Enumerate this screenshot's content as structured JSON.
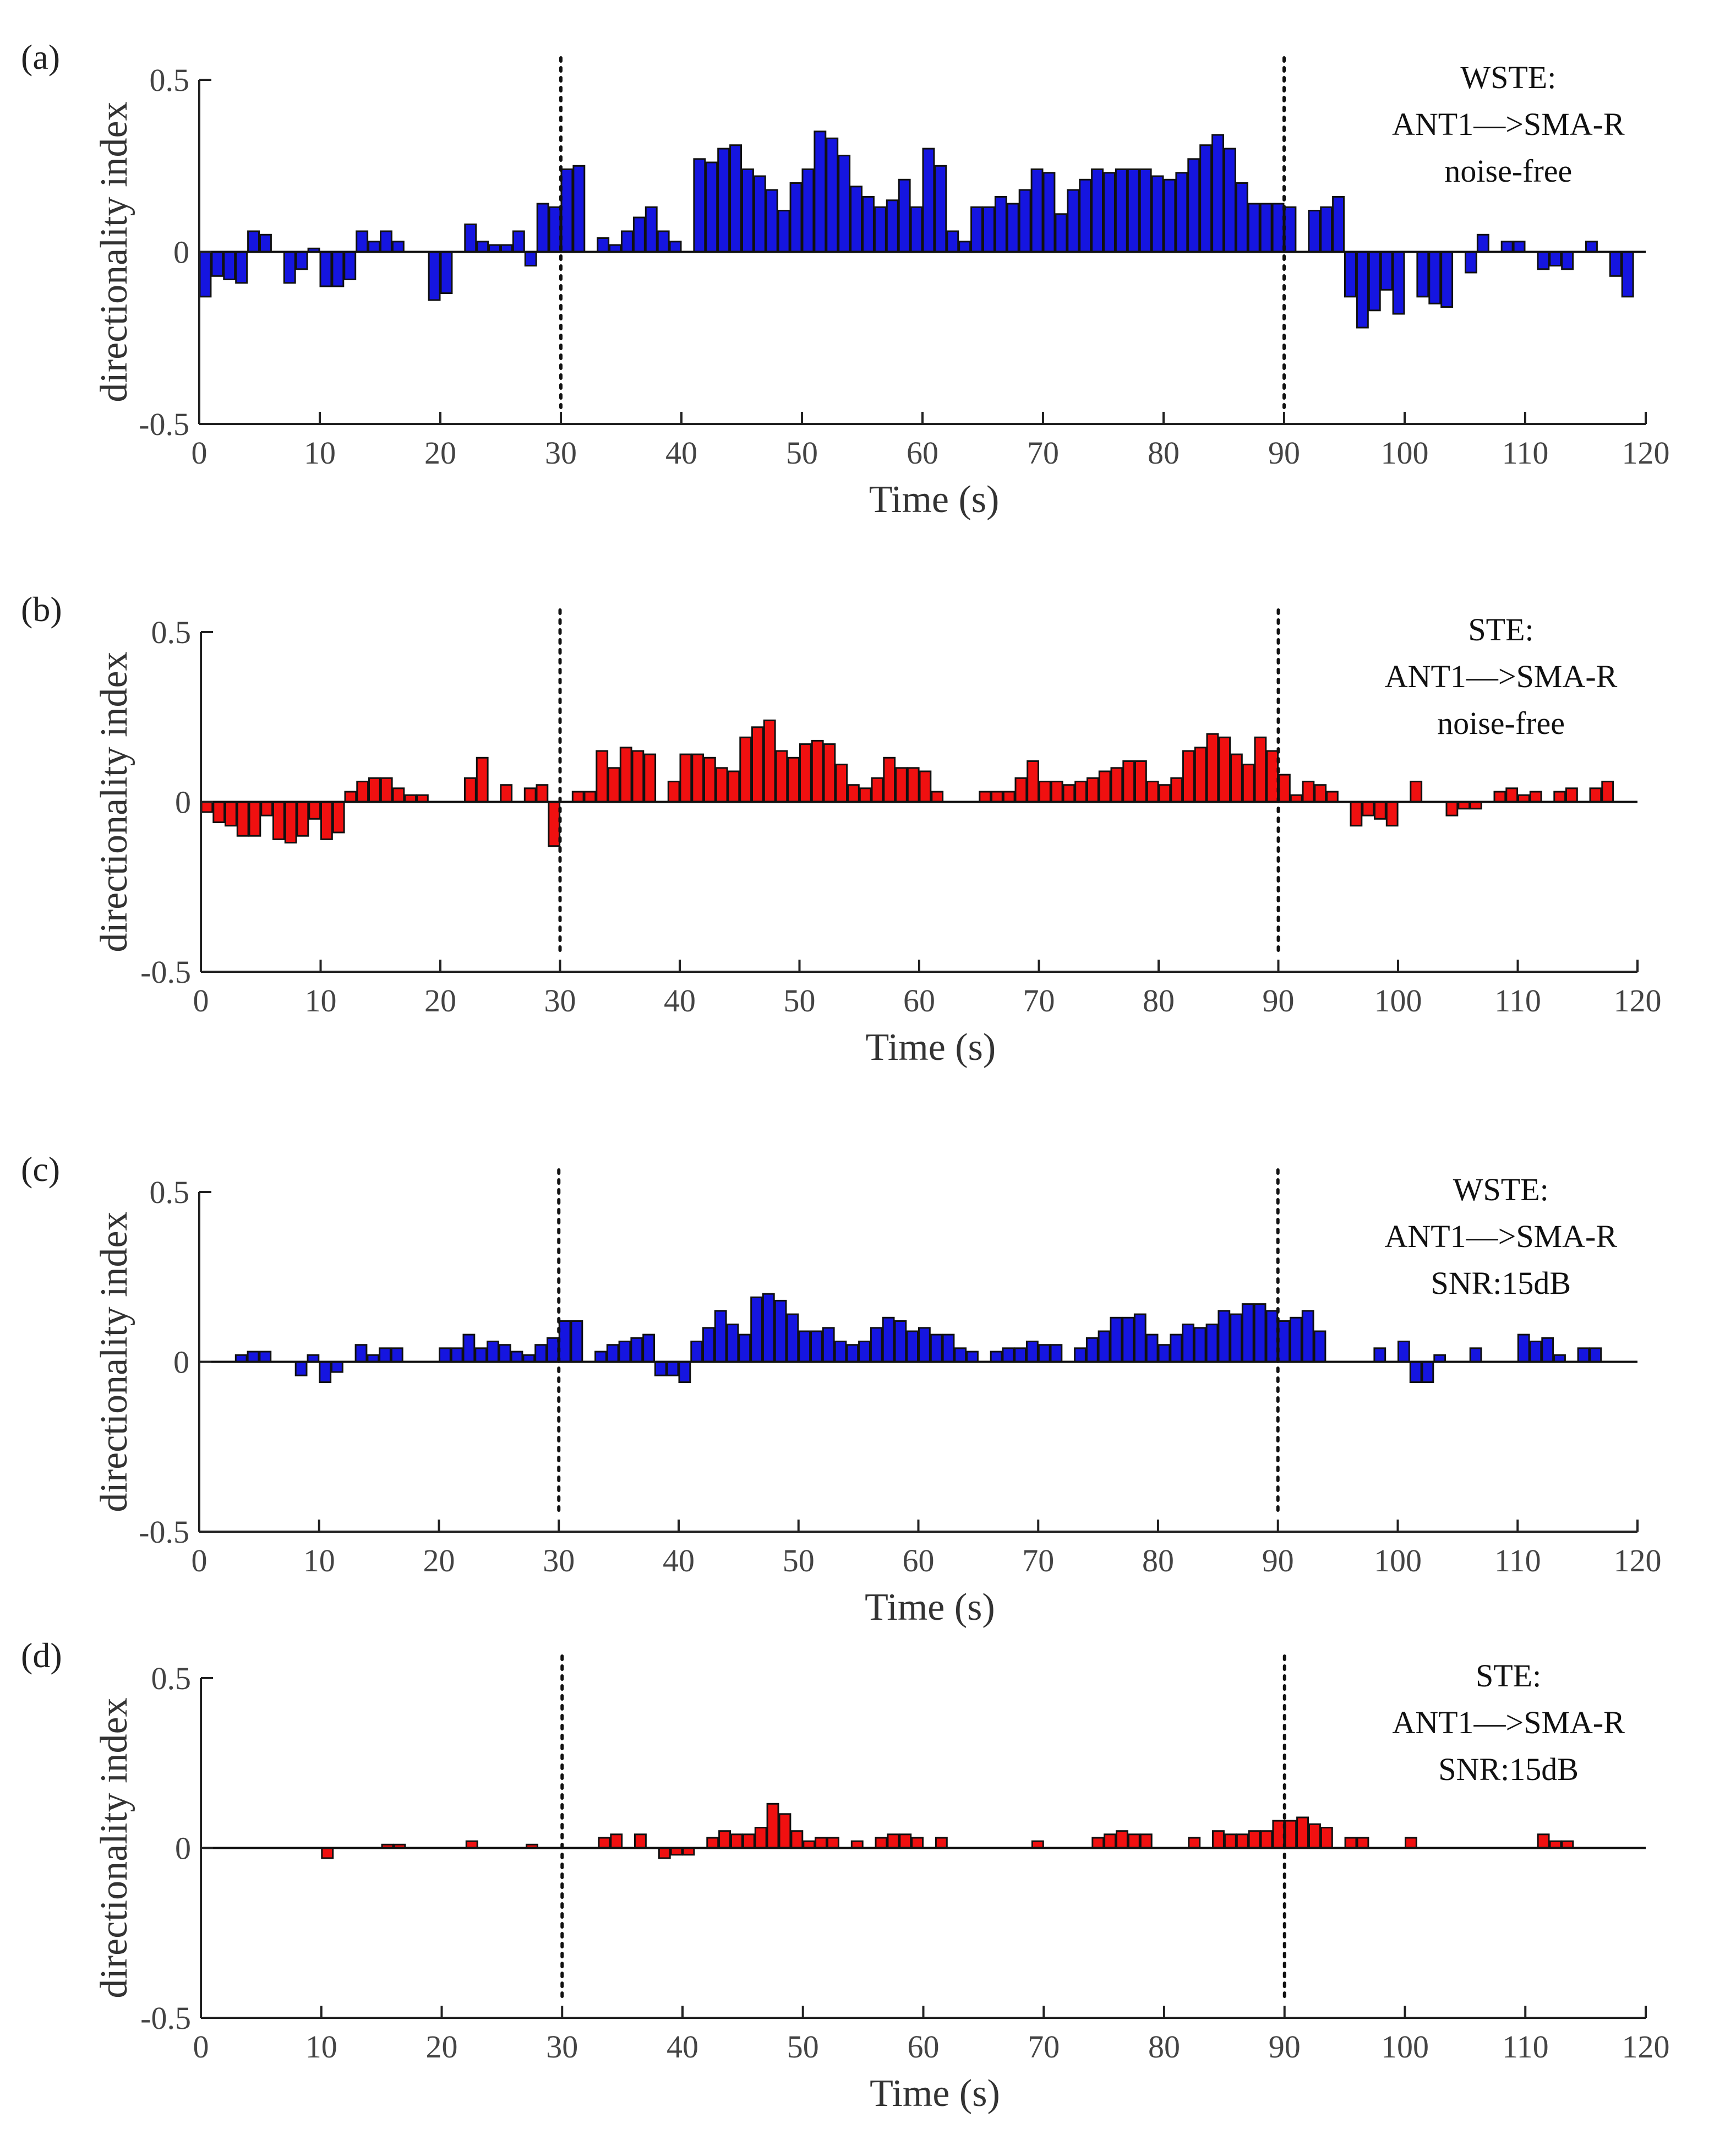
{
  "figure": {
    "panels": [
      {
        "panel_label": "(a)",
        "annotation": [
          "WSTE:",
          "ANT1—>SMA-R",
          "noise-free"
        ],
        "bar_color": "#1515e0"
      },
      {
        "panel_label": "(b)",
        "annotation": [
          "STE:",
          "ANT1—>SMA-R",
          "noise-free"
        ],
        "bar_color": "#f01010"
      },
      {
        "panel_label": "(c)",
        "annotation": [
          "WSTE:",
          "ANT1—>SMA-R",
          "SNR:15dB"
        ],
        "bar_color": "#1515e0"
      },
      {
        "panel_label": "(d)",
        "annotation": [
          "STE:",
          "ANT1—>SMA-R",
          "SNR:15dB"
        ],
        "bar_color": "#f01010"
      }
    ]
  },
  "chart_data": [
    {
      "type": "bar",
      "title": "WSTE: ANT1—>SMA-R noise-free",
      "xlabel": "Time (s)",
      "ylabel": "directionality index",
      "xlim": [
        0,
        120
      ],
      "ylim": [
        -0.5,
        0.5
      ],
      "xticks": [
        0,
        10,
        20,
        30,
        40,
        50,
        60,
        70,
        80,
        90,
        100,
        110,
        120
      ],
      "yticks": [
        -0.5,
        0,
        0.5
      ],
      "ytick_labels": [
        "-0.5",
        "0",
        "0.5"
      ],
      "vlines": [
        30,
        90
      ],
      "x": [
        0,
        1,
        2,
        3,
        4,
        5,
        6,
        7,
        8,
        9,
        10,
        11,
        12,
        13,
        14,
        15,
        16,
        17,
        18,
        19,
        20,
        21,
        22,
        23,
        24,
        25,
        26,
        27,
        28,
        29,
        30,
        31,
        32,
        33,
        34,
        35,
        36,
        37,
        38,
        39,
        40,
        41,
        42,
        43,
        44,
        45,
        46,
        47,
        48,
        49,
        50,
        51,
        52,
        53,
        54,
        55,
        56,
        57,
        58,
        59,
        60,
        61,
        62,
        63,
        64,
        65,
        66,
        67,
        68,
        69,
        70,
        71,
        72,
        73,
        74,
        75,
        76,
        77,
        78,
        79,
        80,
        81,
        82,
        83,
        84,
        85,
        86,
        87,
        88,
        89,
        90,
        91,
        92,
        93,
        94,
        95,
        96,
        97,
        98,
        99,
        100,
        101,
        102,
        103,
        104,
        105,
        106,
        107,
        108,
        109,
        110,
        111,
        112,
        113,
        114,
        115,
        116,
        117,
        118
      ],
      "values": [
        -0.13,
        -0.07,
        -0.08,
        -0.09,
        0.06,
        0.05,
        0,
        -0.09,
        -0.05,
        0.01,
        -0.1,
        -0.1,
        -0.08,
        0.06,
        0.03,
        0.06,
        0.03,
        0,
        0,
        -0.14,
        -0.12,
        0,
        0.08,
        0.03,
        0.02,
        0.02,
        0.06,
        -0.04,
        0.14,
        0.13,
        0.24,
        0.25,
        0,
        0.04,
        0.02,
        0.06,
        0.1,
        0.13,
        0.06,
        0.03,
        0,
        0.27,
        0.26,
        0.3,
        0.31,
        0.24,
        0.22,
        0.18,
        0.12,
        0.2,
        0.24,
        0.35,
        0.33,
        0.28,
        0.19,
        0.16,
        0.13,
        0.15,
        0.21,
        0.13,
        0.3,
        0.25,
        0.06,
        0.03,
        0.13,
        0.13,
        0.16,
        0.14,
        0.18,
        0.24,
        0.23,
        0.11,
        0.18,
        0.21,
        0.24,
        0.23,
        0.24,
        0.24,
        0.24,
        0.22,
        0.21,
        0.23,
        0.27,
        0.31,
        0.34,
        0.3,
        0.2,
        0.14,
        0.14,
        0.14,
        0.13,
        0,
        0.12,
        0.13,
        0.16,
        -0.13,
        -0.22,
        -0.17,
        -0.11,
        -0.18,
        0,
        -0.13,
        -0.15,
        -0.16,
        0,
        -0.06,
        0.05,
        0,
        0.03,
        0.03,
        0,
        -0.05,
        -0.04,
        -0.05,
        0,
        0.03,
        0,
        -0.07,
        -0.13
      ]
    },
    {
      "type": "bar",
      "title": "STE: ANT1—>SMA-R noise-free",
      "xlabel": "Time (s)",
      "ylabel": "directionality index",
      "xlim": [
        0,
        120
      ],
      "ylim": [
        -0.5,
        0.5
      ],
      "xticks": [
        0,
        10,
        20,
        30,
        40,
        50,
        60,
        70,
        80,
        90,
        100,
        110,
        120
      ],
      "yticks": [
        -0.5,
        0,
        0.5
      ],
      "ytick_labels": [
        "-0.5",
        "0",
        "0.5"
      ],
      "vlines": [
        30,
        90
      ],
      "x": [
        0,
        1,
        2,
        3,
        4,
        5,
        6,
        7,
        8,
        9,
        10,
        11,
        12,
        13,
        14,
        15,
        16,
        17,
        18,
        19,
        20,
        21,
        22,
        23,
        24,
        25,
        26,
        27,
        28,
        29,
        30,
        31,
        32,
        33,
        34,
        35,
        36,
        37,
        38,
        39,
        40,
        41,
        42,
        43,
        44,
        45,
        46,
        47,
        48,
        49,
        50,
        51,
        52,
        53,
        54,
        55,
        56,
        57,
        58,
        59,
        60,
        61,
        62,
        63,
        64,
        65,
        66,
        67,
        68,
        69,
        70,
        71,
        72,
        73,
        74,
        75,
        76,
        77,
        78,
        79,
        80,
        81,
        82,
        83,
        84,
        85,
        86,
        87,
        88,
        89,
        90,
        91,
        92,
        93,
        94,
        95,
        96,
        97,
        98,
        99,
        100,
        101,
        102,
        103,
        104,
        105,
        106,
        107,
        108,
        109,
        110,
        111,
        112,
        113,
        114,
        115,
        116,
        117
      ],
      "values": [
        -0.03,
        -0.06,
        -0.07,
        -0.1,
        -0.1,
        -0.04,
        -0.11,
        -0.12,
        -0.1,
        -0.05,
        -0.11,
        -0.09,
        0.03,
        0.06,
        0.07,
        0.07,
        0.04,
        0.02,
        0.02,
        0,
        0,
        0,
        0.07,
        0.13,
        0,
        0.05,
        0,
        0.04,
        0.05,
        -0.13,
        0,
        0.03,
        0.03,
        0.15,
        0.1,
        0.16,
        0.15,
        0.14,
        0,
        0.06,
        0.14,
        0.14,
        0.13,
        0.1,
        0.09,
        0.19,
        0.22,
        0.24,
        0.15,
        0.13,
        0.17,
        0.18,
        0.17,
        0.11,
        0.05,
        0.04,
        0.07,
        0.13,
        0.1,
        0.1,
        0.09,
        0.03,
        0,
        0,
        0,
        0.03,
        0.03,
        0.03,
        0.07,
        0.12,
        0.06,
        0.06,
        0.05,
        0.06,
        0.07,
        0.09,
        0.1,
        0.12,
        0.12,
        0.06,
        0.05,
        0.07,
        0.15,
        0.16,
        0.2,
        0.19,
        0.14,
        0.11,
        0.19,
        0.15,
        0.08,
        0.02,
        0.06,
        0.05,
        0.03,
        0,
        -0.07,
        -0.04,
        -0.05,
        -0.07,
        0,
        0.06,
        0,
        0,
        -0.04,
        -0.02,
        -0.02,
        0,
        0.03,
        0.04,
        0.02,
        0.03,
        0,
        0.03,
        0.04,
        0,
        0.04,
        0.06
      ]
    },
    {
      "type": "bar",
      "title": "WSTE: ANT1—>SMA-R SNR:15dB",
      "xlabel": "Time (s)",
      "ylabel": "directionality index",
      "xlim": [
        0,
        120
      ],
      "ylim": [
        -0.5,
        0.5
      ],
      "xticks": [
        0,
        10,
        20,
        30,
        40,
        50,
        60,
        70,
        80,
        90,
        100,
        110,
        120
      ],
      "yticks": [
        -0.5,
        0,
        0.5
      ],
      "ytick_labels": [
        "-0.5",
        "0",
        "0.5"
      ],
      "vlines": [
        30,
        90
      ],
      "x": [
        3,
        4,
        5,
        8,
        9,
        10,
        11,
        13,
        14,
        15,
        16,
        20,
        21,
        22,
        23,
        24,
        25,
        26,
        27,
        28,
        29,
        30,
        31,
        32,
        33,
        34,
        35,
        36,
        37,
        38,
        39,
        40,
        41,
        42,
        43,
        44,
        45,
        46,
        47,
        48,
        49,
        50,
        51,
        52,
        53,
        54,
        55,
        56,
        57,
        58,
        59,
        60,
        61,
        62,
        63,
        64,
        65,
        66,
        67,
        68,
        69,
        70,
        71,
        72,
        73,
        74,
        75,
        76,
        77,
        78,
        79,
        80,
        81,
        82,
        83,
        84,
        85,
        86,
        87,
        88,
        89,
        90,
        91,
        92,
        93,
        94,
        95,
        98,
        100,
        101,
        102,
        103,
        104,
        106,
        110,
        111,
        112,
        113,
        114,
        115,
        116
      ],
      "values": [
        0.02,
        0.03,
        0.03,
        -0.04,
        0.02,
        -0.06,
        -0.03,
        0.05,
        0.02,
        0.04,
        0.04,
        0.04,
        0.04,
        0.08,
        0.04,
        0.06,
        0.05,
        0.03,
        0.02,
        0.05,
        0.07,
        0.12,
        0.12,
        0,
        0.03,
        0.05,
        0.06,
        0.07,
        0.08,
        -0.04,
        -0.04,
        -0.06,
        0.06,
        0.1,
        0.15,
        0.11,
        0.08,
        0.19,
        0.2,
        0.18,
        0.14,
        0.09,
        0.09,
        0.1,
        0.06,
        0.05,
        0.06,
        0.1,
        0.13,
        0.12,
        0.09,
        0.1,
        0.08,
        0.08,
        0.04,
        0.03,
        0,
        0.03,
        0.04,
        0.04,
        0.06,
        0.05,
        0.05,
        0,
        0.04,
        0.07,
        0.09,
        0.13,
        0.13,
        0.14,
        0.08,
        0.05,
        0.08,
        0.11,
        0.1,
        0.11,
        0.15,
        0.14,
        0.17,
        0.17,
        0.15,
        0.12,
        0.13,
        0.15,
        0.09,
        0,
        0,
        0.04,
        0.06,
        -0.06,
        -0.06,
        0.02,
        0,
        0.04,
        0.08,
        0.06,
        0.07,
        0.02,
        0,
        0.04,
        0.04
      ]
    },
    {
      "type": "bar",
      "title": "STE: ANT1—>SMA-R SNR:15dB",
      "xlabel": "Time (s)",
      "ylabel": "directionality index",
      "xlim": [
        0,
        120
      ],
      "ylim": [
        -0.5,
        0.5
      ],
      "xticks": [
        0,
        10,
        20,
        30,
        40,
        50,
        60,
        70,
        80,
        90,
        100,
        110,
        120
      ],
      "yticks": [
        -0.5,
        0,
        0.5
      ],
      "ytick_labels": [
        "-0.5",
        "0",
        "0.5"
      ],
      "vlines": [
        30,
        90
      ],
      "x": [
        10,
        15,
        16,
        22,
        27,
        33,
        34,
        36,
        38,
        39,
        40,
        42,
        43,
        44,
        45,
        46,
        47,
        48,
        49,
        50,
        51,
        52,
        54,
        56,
        57,
        58,
        59,
        61,
        69,
        74,
        75,
        76,
        77,
        78,
        82,
        84,
        85,
        86,
        87,
        88,
        89,
        90,
        91,
        92,
        93,
        95,
        96,
        100,
        111,
        112,
        113
      ],
      "values": [
        -0.03,
        0.01,
        0.01,
        0.02,
        0.01,
        0.03,
        0.04,
        0.04,
        -0.03,
        -0.02,
        -0.02,
        0.03,
        0.05,
        0.04,
        0.04,
        0.06,
        0.13,
        0.1,
        0.05,
        0.02,
        0.03,
        0.03,
        0.02,
        0.03,
        0.04,
        0.04,
        0.03,
        0.03,
        0.02,
        0.03,
        0.04,
        0.05,
        0.04,
        0.04,
        0.03,
        0.05,
        0.04,
        0.04,
        0.05,
        0.05,
        0.08,
        0.08,
        0.09,
        0.07,
        0.06,
        0.03,
        0.03,
        0.03,
        0.04,
        0.02,
        0.02
      ]
    }
  ]
}
